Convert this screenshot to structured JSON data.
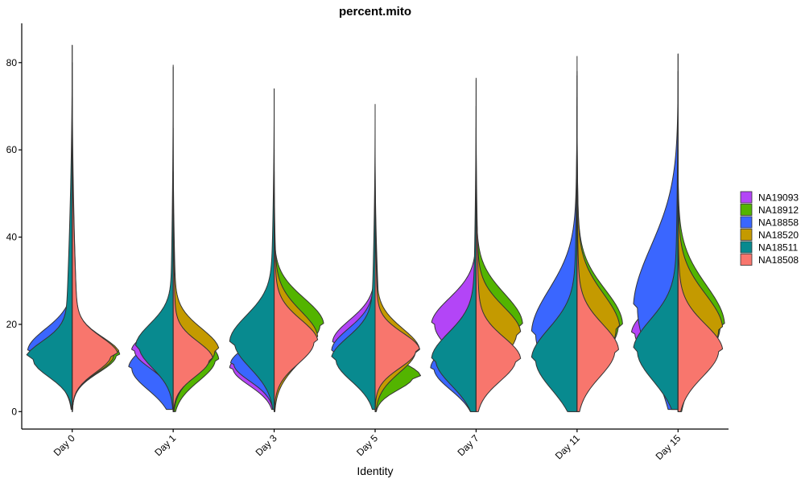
{
  "chart_data": {
    "type": "violin",
    "title": "percent.mito",
    "xlabel": "Identity",
    "ylabel": "",
    "ylim": [
      -4,
      89
    ],
    "yticks": [
      0,
      20,
      40,
      60,
      80
    ],
    "categories": [
      "Day 0",
      "Day 1",
      "Day 3",
      "Day 5",
      "Day 7",
      "Day 11",
      "Day 15"
    ],
    "legend_position": "right",
    "grid": false,
    "series": [
      {
        "name": "NA19093",
        "color": "#B345F7"
      },
      {
        "name": "NA18912",
        "color": "#53B400"
      },
      {
        "name": "NA18858",
        "color": "#3A66FF"
      },
      {
        "name": "NA18520",
        "color": "#C49A00"
      },
      {
        "name": "NA18511",
        "color": "#088A8F"
      },
      {
        "name": "NA18508",
        "color": "#F8766D"
      }
    ],
    "violins": [
      {
        "category": "Day 0",
        "ymax": 84,
        "left": [
          {
            "name": "NA18858",
            "min": 0.5,
            "max": 30,
            "mode": 14,
            "width": 0.45,
            "sd": 5
          },
          {
            "name": "NA18511",
            "min": 0.5,
            "max": 84,
            "mode": 12,
            "width": 0.46,
            "sd": 4,
            "tail": 0.2
          }
        ],
        "right": [
          {
            "name": "NA18912",
            "min": 0,
            "max": 34,
            "mode": 13,
            "width": 0.48,
            "sd": 4
          },
          {
            "name": "NA18520",
            "min": 0,
            "max": 80,
            "mode": 13,
            "width": 0.47,
            "sd": 4,
            "tail": 0.15
          },
          {
            "name": "NA18508",
            "min": 0,
            "max": 72,
            "mode": 13,
            "width": 0.46,
            "sd": 4,
            "tail": 0.18
          }
        ]
      },
      {
        "category": "Day 1",
        "ymax": 79.5,
        "left": [
          {
            "name": "NA18858",
            "min": 0.5,
            "max": 32,
            "mode": 10,
            "width": 0.45,
            "sd": 5
          },
          {
            "name": "NA19093",
            "min": 0.5,
            "max": 32,
            "mode": 14,
            "width": 0.42,
            "sd": 4
          },
          {
            "name": "NA18511",
            "min": 0.5,
            "max": 79,
            "mode": 15,
            "width": 0.38,
            "sd": 5,
            "tail": 0.1
          }
        ],
        "right": [
          {
            "name": "NA18912",
            "min": 0,
            "max": 42,
            "mode": 12,
            "width": 0.46,
            "sd": 5
          },
          {
            "name": "NA18520",
            "min": 0,
            "max": 65,
            "mode": 14,
            "width": 0.46,
            "sd": 5,
            "tail": 0.1
          },
          {
            "name": "NA18508",
            "min": 0,
            "max": 55,
            "mode": 12,
            "width": 0.4,
            "sd": 4,
            "tail": 0.1
          }
        ]
      },
      {
        "category": "Day 3",
        "ymax": 74,
        "left": [
          {
            "name": "NA19093",
            "min": 0.5,
            "max": 30,
            "mode": 10,
            "width": 0.45,
            "sd": 4
          },
          {
            "name": "NA18858",
            "min": 0.5,
            "max": 30,
            "mode": 11,
            "width": 0.44,
            "sd": 4
          },
          {
            "name": "NA18511",
            "min": 0.5,
            "max": 74,
            "mode": 16,
            "width": 0.45,
            "sd": 6,
            "tail": 0.12
          }
        ],
        "right": [
          {
            "name": "NA18912",
            "min": 0,
            "max": 45,
            "mode": 20,
            "width": 0.5,
            "sd": 6
          },
          {
            "name": "NA18520",
            "min": 0,
            "max": 60,
            "mode": 17,
            "width": 0.44,
            "sd": 6,
            "tail": 0.1
          },
          {
            "name": "NA18508",
            "min": 0,
            "max": 55,
            "mode": 16,
            "width": 0.44,
            "sd": 5,
            "tail": 0.1
          }
        ]
      },
      {
        "category": "Day 5",
        "ymax": 70.5,
        "left": [
          {
            "name": "NA19093",
            "min": 0.5,
            "max": 35,
            "mode": 16,
            "width": 0.43,
            "sd": 5
          },
          {
            "name": "NA18858",
            "min": 0.5,
            "max": 50,
            "mode": 14,
            "width": 0.44,
            "sd": 5
          },
          {
            "name": "NA18511",
            "min": 0.5,
            "max": 70,
            "mode": 12,
            "width": 0.44,
            "sd": 5,
            "tail": 0.12
          }
        ],
        "right": [
          {
            "name": "NA18912",
            "min": 0,
            "max": 60,
            "mode": 8,
            "width": 0.46,
            "sd": 3,
            "tail": 0.2
          },
          {
            "name": "NA18520",
            "min": 0,
            "max": 60,
            "mode": 14,
            "width": 0.45,
            "sd": 5,
            "tail": 0.1
          },
          {
            "name": "NA18508",
            "min": 0,
            "max": 55,
            "mode": 14,
            "width": 0.45,
            "sd": 4,
            "tail": 0.1
          }
        ]
      },
      {
        "category": "Day 7",
        "ymax": 76.5,
        "left": [
          {
            "name": "NA19093",
            "min": 0,
            "max": 40,
            "mode": 20,
            "width": 0.45,
            "sd": 6
          },
          {
            "name": "NA18858",
            "min": 0,
            "max": 35,
            "mode": 10,
            "width": 0.46,
            "sd": 5
          },
          {
            "name": "NA18511",
            "min": 0,
            "max": 76,
            "mode": 12,
            "width": 0.45,
            "sd": 6,
            "tail": 0.1
          }
        ],
        "right": [
          {
            "name": "NA18912",
            "min": 0,
            "max": 60,
            "mode": 20,
            "width": 0.47,
            "sd": 7
          },
          {
            "name": "NA18520",
            "min": 0,
            "max": 70,
            "mode": 18,
            "width": 0.45,
            "sd": 6,
            "tail": 0.1
          },
          {
            "name": "NA18508",
            "min": 0,
            "max": 65,
            "mode": 12,
            "width": 0.45,
            "sd": 5,
            "tail": 0.12
          }
        ]
      },
      {
        "category": "Day 11",
        "ymax": 81.5,
        "left": [
          {
            "name": "NA18858",
            "min": 0,
            "max": 78,
            "mode": 18,
            "width": 0.46,
            "sd": 10,
            "tail": 0.1
          },
          {
            "name": "NA18511",
            "min": 0,
            "max": 77,
            "mode": 12,
            "width": 0.46,
            "sd": 7,
            "tail": 0.1
          }
        ],
        "right": [
          {
            "name": "NA18912",
            "min": 0,
            "max": 70,
            "mode": 20,
            "width": 0.46,
            "sd": 8,
            "tail": 0.1
          },
          {
            "name": "NA18520",
            "min": 0,
            "max": 72,
            "mode": 19,
            "width": 0.43,
            "sd": 8,
            "tail": 0.1
          },
          {
            "name": "NA18508",
            "min": 0,
            "max": 60,
            "mode": 14,
            "width": 0.42,
            "sd": 6,
            "tail": 0.1
          }
        ]
      },
      {
        "category": "Day 15",
        "ymax": 82,
        "left": [
          {
            "name": "NA19093",
            "min": 0.5,
            "max": 40,
            "mode": 18,
            "width": 0.47,
            "sd": 6
          },
          {
            "name": "NA18858",
            "min": 0.5,
            "max": 78,
            "mode": 24,
            "width": 0.45,
            "sd": 14,
            "tail": 0.1
          },
          {
            "name": "NA18511",
            "min": 0.5,
            "max": 82,
            "mode": 14,
            "width": 0.45,
            "sd": 7,
            "tail": 0.1
          }
        ],
        "right": [
          {
            "name": "NA18912",
            "min": 0,
            "max": 60,
            "mode": 20,
            "width": 0.47,
            "sd": 9,
            "tail": 0.1
          },
          {
            "name": "NA18520",
            "min": 0,
            "max": 60,
            "mode": 19,
            "width": 0.45,
            "sd": 8,
            "tail": 0.1
          },
          {
            "name": "NA18508",
            "min": 0,
            "max": 50,
            "mode": 14,
            "width": 0.45,
            "sd": 6,
            "tail": 0.1
          }
        ]
      }
    ]
  }
}
